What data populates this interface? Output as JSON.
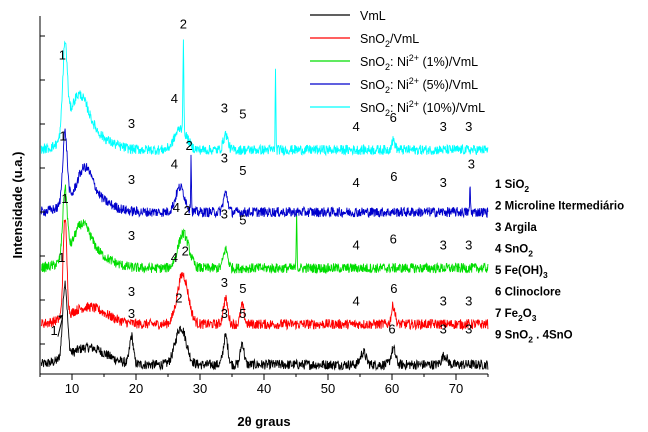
{
  "chart_data": {
    "type": "line",
    "xlabel": "2θ graus",
    "ylabel": "Intensidade (u.a.)",
    "xlim": [
      5,
      75
    ],
    "x_ticks": [
      10,
      20,
      30,
      40,
      50,
      60,
      70
    ],
    "y_ticks_shown": false,
    "legend_position": "top-right",
    "series": [
      {
        "legend": {
          "pre": "VmL",
          "sub": "",
          "mid": "",
          "sup": "",
          "post": ""
        },
        "color": "#000000",
        "baseline": 0.0,
        "peaks": [
          [
            8.9,
            2.4,
            0.5
          ],
          [
            19.3,
            0.9,
            0.4
          ],
          [
            27.0,
            1.2,
            1.2
          ],
          [
            34.0,
            0.9,
            0.5
          ],
          [
            36.6,
            0.7,
            0.4
          ],
          [
            55.5,
            0.4,
            0.6
          ],
          [
            60.2,
            0.5,
            0.5
          ],
          [
            68.2,
            0.3,
            0.6
          ]
        ],
        "labels": [
          {
            "x": 19.3,
            "y": 1.5,
            "text": "3"
          },
          {
            "x": 26.7,
            "y": 2.0,
            "text": "2"
          },
          {
            "x": 33.8,
            "y": 1.5,
            "text": "3"
          },
          {
            "x": 36.7,
            "y": 1.5,
            "text": "5"
          },
          {
            "x": 60.0,
            "y": 1.0,
            "text": "6"
          },
          {
            "x": 68.0,
            "y": 1.0,
            "text": "3"
          },
          {
            "x": 72.0,
            "y": 1.0,
            "text": "3"
          }
        ]
      },
      {
        "legend": {
          "pre": "SnO",
          "sub": "2",
          "mid": "/VmL",
          "sup": "",
          "post": ""
        },
        "color": "#ff0000",
        "baseline": 1.3,
        "peaks": [
          [
            8.9,
            3.2,
            0.4
          ],
          [
            27.3,
            1.6,
            1.2
          ],
          [
            34.0,
            0.8,
            0.5
          ],
          [
            36.6,
            0.6,
            0.4
          ],
          [
            60.2,
            0.6,
            0.4
          ]
        ],
        "labels": [
          {
            "x": 8.4,
            "y": 3.3,
            "text": "1"
          },
          {
            "x": 19.3,
            "y": 2.2,
            "text": "3"
          },
          {
            "x": 26.0,
            "y": 3.3,
            "text": "4"
          },
          {
            "x": 27.7,
            "y": 3.5,
            "text": "2"
          },
          {
            "x": 33.8,
            "y": 2.5,
            "text": "3"
          },
          {
            "x": 36.7,
            "y": 2.3,
            "text": "5"
          },
          {
            "x": 54.4,
            "y": 1.9,
            "text": "4"
          },
          {
            "x": 60.3,
            "y": 2.3,
            "text": "6"
          },
          {
            "x": 68.0,
            "y": 1.9,
            "text": "3"
          },
          {
            "x": 72.0,
            "y": 1.9,
            "text": "3"
          }
        ]
      },
      {
        "legend": {
          "pre": "SnO",
          "sub": "2",
          "mid": ": Ni",
          "sup": "2+",
          "post": " (1%)/VmL"
        },
        "color": "#00dd00",
        "baseline": 3.1,
        "peaks": [
          [
            8.9,
            2.2,
            0.5
          ],
          [
            11.5,
            0.9,
            1.8
          ],
          [
            27.4,
            1.1,
            1.2
          ],
          [
            34.0,
            0.6,
            0.5
          ],
          [
            45.1,
            2.0,
            0.08
          ]
        ],
        "labels": [
          {
            "x": 8.9,
            "y": 5.2,
            "text": "1"
          },
          {
            "x": 19.3,
            "y": 4.0,
            "text": "3"
          },
          {
            "x": 26.3,
            "y": 4.9,
            "text": "4"
          },
          {
            "x": 28.0,
            "y": 4.8,
            "text": "2"
          },
          {
            "x": 33.8,
            "y": 4.7,
            "text": "3"
          },
          {
            "x": 36.7,
            "y": 4.5,
            "text": "5"
          },
          {
            "x": 54.4,
            "y": 3.7,
            "text": "4"
          },
          {
            "x": 60.2,
            "y": 3.9,
            "text": "6"
          },
          {
            "x": 68.0,
            "y": 3.7,
            "text": "3"
          },
          {
            "x": 72.0,
            "y": 3.7,
            "text": "3"
          }
        ]
      },
      {
        "legend": {
          "pre": "SnO",
          "sub": "2",
          "mid": ": Ni",
          "sup": "2+",
          "post": " (5%)/VmL"
        },
        "color": "#0000cc",
        "baseline": 4.9,
        "peaks": [
          [
            8.9,
            2.3,
            0.5
          ],
          [
            12.0,
            0.9,
            1.6
          ],
          [
            26.9,
            0.8,
            1.0
          ],
          [
            28.6,
            1.9,
            0.08
          ],
          [
            34.0,
            0.6,
            0.5
          ],
          [
            72.2,
            0.9,
            0.08
          ]
        ],
        "labels": [
          {
            "x": 8.6,
            "y": 7.2,
            "text": "1"
          },
          {
            "x": 19.3,
            "y": 5.8,
            "text": "3"
          },
          {
            "x": 26.0,
            "y": 6.3,
            "text": "4"
          },
          {
            "x": 28.3,
            "y": 6.9,
            "text": "2"
          },
          {
            "x": 33.8,
            "y": 6.5,
            "text": "3"
          },
          {
            "x": 36.7,
            "y": 6.1,
            "text": "5"
          },
          {
            "x": 54.4,
            "y": 5.7,
            "text": "4"
          },
          {
            "x": 60.3,
            "y": 5.9,
            "text": "6"
          },
          {
            "x": 68.0,
            "y": 5.7,
            "text": "3"
          },
          {
            "x": 72.4,
            "y": 6.3,
            "text": "3"
          }
        ]
      },
      {
        "legend": {
          "pre": "SnO",
          "sub": "2",
          "mid": ": Ni",
          "sup": "2+",
          "post": " (10%)/VmL"
        },
        "color": "#00ffff",
        "baseline": 6.9,
        "peaks": [
          [
            8.9,
            2.8,
            0.5
          ],
          [
            11.0,
            1.3,
            2.0
          ],
          [
            27.4,
            2.9,
            0.1
          ],
          [
            27.0,
            0.7,
            1.3
          ],
          [
            34.0,
            0.5,
            0.5
          ],
          [
            41.8,
            2.5,
            0.08
          ],
          [
            60.2,
            0.3,
            0.4
          ]
        ],
        "labels": [
          {
            "x": 8.5,
            "y": 9.8,
            "text": "1"
          },
          {
            "x": 19.3,
            "y": 7.6,
            "text": "3"
          },
          {
            "x": 26.0,
            "y": 8.4,
            "text": "4"
          },
          {
            "x": 27.4,
            "y": 10.8,
            "text": "2"
          },
          {
            "x": 33.8,
            "y": 8.1,
            "text": "3"
          },
          {
            "x": 36.7,
            "y": 7.9,
            "text": "5"
          },
          {
            "x": 54.4,
            "y": 7.5,
            "text": "4"
          },
          {
            "x": 60.2,
            "y": 7.8,
            "text": "6"
          },
          {
            "x": 68.0,
            "y": 7.5,
            "text": "3"
          },
          {
            "x": 72.0,
            "y": 7.5,
            "text": "3"
          }
        ]
      }
    ],
    "extra_label": {
      "x": 7.2,
      "y": 0.95,
      "text": "1"
    },
    "phase_legend": [
      {
        "num": "1",
        "name": "SiO",
        "sub": "2",
        "tail": ""
      },
      {
        "num": "2",
        "name": "Microline Itermediário",
        "sub": "",
        "tail": ""
      },
      {
        "num": "3",
        "name": "Argila",
        "sub": "",
        "tail": ""
      },
      {
        "num": "4",
        "name": "SnO",
        "sub": "2",
        "tail": ""
      },
      {
        "num": "5",
        "name": "Fe(OH)",
        "sub": "3",
        "tail": ""
      },
      {
        "num": "6",
        "name": "Clinoclore",
        "sub": "",
        "tail": ""
      },
      {
        "num": "7",
        "name": "Fe",
        "sub": "2",
        "tail": "O",
        "sub2": "3"
      },
      {
        "num": "9",
        "name": "SnO",
        "sub": "2",
        "tail": " . 4SnO"
      }
    ]
  }
}
